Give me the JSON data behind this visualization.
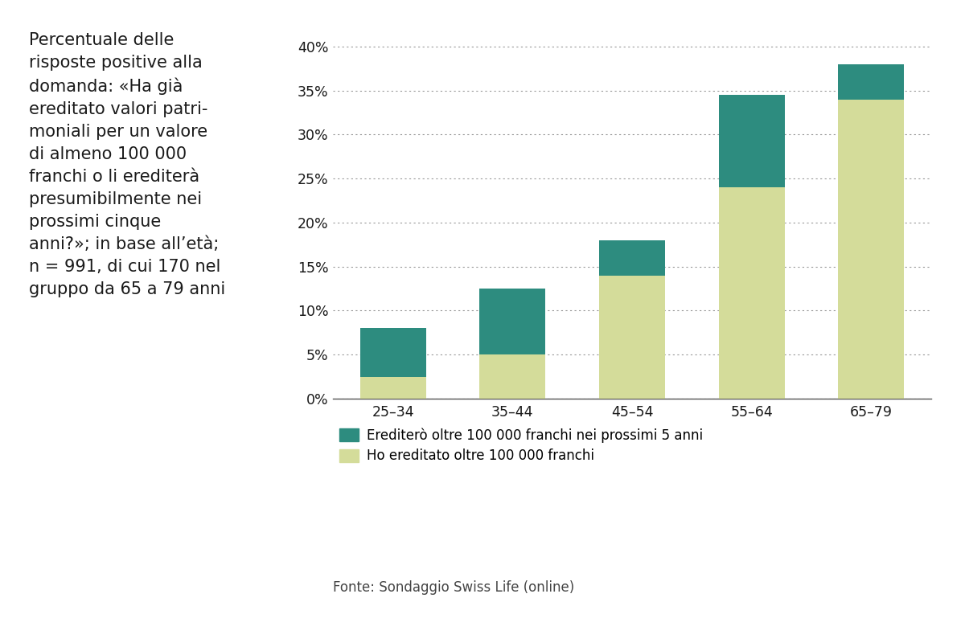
{
  "categories": [
    "25–34",
    "35–44",
    "45–54",
    "55–64",
    "65–79"
  ],
  "bottom_values": [
    2.5,
    5.0,
    14.0,
    24.0,
    34.0
  ],
  "top_values": [
    5.5,
    7.5,
    4.0,
    10.5,
    4.0
  ],
  "color_bottom": "#d4dc9a",
  "color_top": "#2d8c7f",
  "ylim": [
    0,
    0.42
  ],
  "yticks": [
    0.0,
    0.05,
    0.1,
    0.15,
    0.2,
    0.25,
    0.3,
    0.35,
    0.4
  ],
  "ytick_labels": [
    "0%",
    "5%",
    "10%",
    "15%",
    "20%",
    "25%",
    "30%",
    "35%",
    "40%"
  ],
  "legend_label_top": "Erediterò oltre 100 000 franchi nei prossimi 5 anni",
  "legend_label_bottom": "Ho ereditato oltre 100 000 franchi",
  "source_text": "Fonte: Sondaggio Swiss Life (online)",
  "left_text_lines": [
    "Percentuale delle",
    "risposte positive alla",
    "domanda: «Ha già",
    "ereditato valori patri-",
    "moniali per un valore",
    "di almeno 100 000",
    "franchi o li erediterà",
    "presumibilmente nei",
    "prossimi cinque",
    "anni?»; in base all’età;",
    "n = 991, di cui 170 nel",
    "gruppo da 65 a 79 anni"
  ],
  "background_color": "#ffffff",
  "bar_width": 0.55,
  "grid_color": "#999999",
  "axis_color": "#555555",
  "text_color": "#1a1a1a",
  "source_color": "#444444"
}
